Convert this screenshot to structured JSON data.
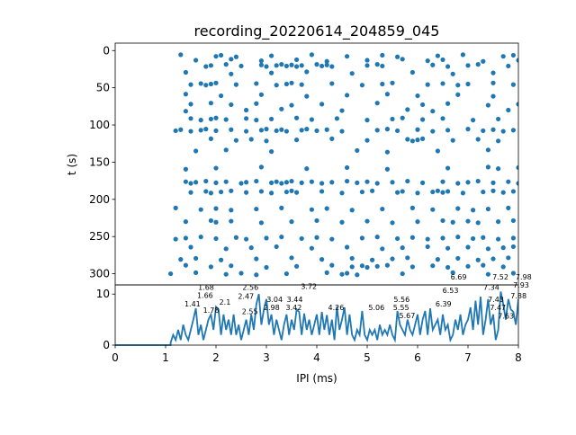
{
  "chart_data": [
    {
      "type": "scatter",
      "title": "recording_20220614_204859_045",
      "xlabel": "",
      "ylabel": "t (s)",
      "xlim": [
        0,
        8
      ],
      "ylim": [
        315,
        -10
      ],
      "yticks": [
        "0",
        "50",
        "100",
        "150",
        "200",
        "250",
        "300"
      ],
      "color": "#1f77b4",
      "rows": [
        {
          "t": 7,
          "x": [
            1.3,
            2.0,
            2.1,
            2.4,
            3.1,
            3.9,
            4.6,
            5.3,
            5.6,
            6.4,
            6.9,
            7.7,
            7.9
          ]
        },
        {
          "t": 13,
          "x": [
            1.6,
            2.3,
            2.9,
            3.6,
            4.2,
            5.0,
            5.7,
            6.2,
            6.5,
            7.3,
            8.0
          ]
        },
        {
          "t": 20,
          "x": [
            1.8,
            1.9,
            2.2,
            2.5,
            2.9,
            3.0,
            3.2,
            3.3,
            3.4,
            3.5,
            3.6,
            3.7,
            4.0,
            4.1,
            4.2,
            4.3,
            5.0,
            5.2,
            5.3,
            6.3,
            6.6,
            7.0,
            7.2,
            7.8
          ]
        },
        {
          "t": 30,
          "x": [
            1.4,
            2.3,
            3.1,
            3.8,
            4.7,
            5.9,
            6.7,
            7.5
          ]
        },
        {
          "t": 45,
          "x": [
            1.5,
            1.7,
            1.8,
            1.9,
            2.0,
            2.4,
            2.8,
            3.2,
            3.4,
            3.5,
            3.7,
            4.3,
            4.9,
            5.3,
            5.5,
            6.2,
            6.5,
            6.8,
            7.0,
            7.5,
            7.9
          ]
        },
        {
          "t": 60,
          "x": [
            1.4,
            2.1,
            2.9,
            3.8,
            4.6,
            5.4,
            6.0,
            6.8,
            7.5
          ]
        },
        {
          "t": 72,
          "x": [
            1.5,
            1.9,
            2.3,
            2.8,
            3.5,
            4.1,
            5.2,
            6.1,
            6.6,
            7.4,
            8.0
          ]
        },
        {
          "t": 80,
          "x": [
            1.4,
            2.6,
            3.3,
            4.5,
            5.8,
            6.3,
            7.8
          ]
        },
        {
          "t": 92,
          "x": [
            1.5,
            1.7,
            1.9,
            2.0,
            2.2,
            2.6,
            2.8,
            3.1,
            3.6,
            3.9,
            4.4,
            5.0,
            5.5,
            5.7,
            6.1,
            6.5,
            7.1,
            7.6
          ]
        },
        {
          "t": 107,
          "x": [
            1.2,
            1.3,
            1.5,
            1.7,
            1.8,
            2.0,
            2.3,
            2.6,
            2.9,
            3.0,
            3.2,
            3.3,
            3.4,
            3.7,
            3.8,
            4.0,
            4.2,
            4.5,
            5.2,
            5.4,
            5.6,
            6.0,
            6.3,
            6.6,
            7.0,
            7.3,
            7.5,
            7.7,
            7.9
          ]
        },
        {
          "t": 120,
          "x": [
            1.9,
            2.4,
            2.7,
            3.0,
            3.6,
            4.3,
            5.0,
            5.8,
            5.9,
            6.0,
            6.1,
            6.7,
            7.2,
            7.6
          ]
        },
        {
          "t": 135,
          "x": [
            1.6,
            2.2,
            3.1,
            4.8,
            5.4,
            6.4,
            7.4
          ]
        },
        {
          "t": 158,
          "x": [
            1.4,
            2.0,
            2.9,
            3.8,
            4.6,
            5.4,
            6.6,
            7.4,
            7.6,
            8.0
          ]
        },
        {
          "t": 177,
          "x": [
            1.4,
            1.5,
            1.6,
            1.8,
            2.0,
            2.2,
            2.5,
            2.6,
            2.8,
            3.1,
            3.2,
            3.3,
            3.4,
            3.5,
            3.7,
            3.9,
            4.1,
            4.3,
            4.6,
            4.8,
            5.0,
            5.2,
            5.5,
            5.8,
            6.1,
            6.5,
            6.8,
            7.0,
            7.2,
            7.5,
            7.8,
            8.0
          ]
        },
        {
          "t": 190,
          "x": [
            1.5,
            1.8,
            1.9,
            2.1,
            2.3,
            2.6,
            2.9,
            3.1,
            3.4,
            3.5,
            3.6,
            4.1,
            4.5,
            4.9,
            5.1,
            5.6,
            5.7,
            6.0,
            6.3,
            6.4,
            6.5,
            6.6,
            6.9,
            7.3,
            7.5,
            7.7,
            7.9
          ]
        },
        {
          "t": 213,
          "x": [
            1.2,
            1.7,
            2.0,
            2.3,
            2.8,
            3.3,
            3.9,
            4.2,
            4.7,
            5.3,
            5.9,
            6.3,
            6.8,
            7.1,
            7.4,
            7.8
          ]
        },
        {
          "t": 230,
          "x": [
            1.4,
            1.9,
            2.0,
            2.3,
            2.9,
            3.5,
            4.0,
            4.5,
            5.0,
            5.5,
            6.0,
            6.5,
            6.7,
            7.0,
            7.2,
            7.6,
            7.9
          ]
        },
        {
          "t": 252,
          "x": [
            1.2,
            1.4,
            1.7,
            2.0,
            2.4,
            2.6,
            3.0,
            3.3,
            3.7,
            4.0,
            4.3,
            4.9,
            5.2,
            5.6,
            5.9,
            6.2,
            6.5,
            6.8,
            7.1,
            7.3,
            7.6,
            7.9
          ]
        },
        {
          "t": 265,
          "x": [
            1.5,
            2.2,
            2.7,
            3.2,
            3.9,
            4.6,
            5.3,
            5.7,
            6.2,
            6.6,
            7.0,
            7.4,
            7.7,
            7.9
          ]
        },
        {
          "t": 280,
          "x": [
            1.3,
            1.6,
            2.1,
            2.8,
            3.5,
            4.1,
            4.7,
            5.1,
            5.5,
            5.8,
            6.4,
            6.8,
            7.2,
            7.5,
            7.8
          ]
        },
        {
          "t": 290,
          "x": [
            1.4,
            1.9,
            2.3,
            3.0,
            3.6,
            4.3,
            4.7,
            4.9,
            5.0,
            5.2,
            5.4,
            5.9,
            6.3,
            6.6,
            7.0,
            7.3,
            7.7
          ]
        },
        {
          "t": 300,
          "x": [
            1.1,
            1.6,
            2.2,
            2.5,
            2.8,
            3.4,
            4.2,
            4.5,
            4.6,
            4.8,
            5.7,
            6.7,
            7.4,
            7.9
          ]
        }
      ]
    },
    {
      "type": "line",
      "xlabel": "IPI (ms)",
      "ylabel": "",
      "xlim": [
        0,
        8
      ],
      "ylim": [
        0,
        11.8
      ],
      "xticks": [
        "0",
        "1",
        "2",
        "3",
        "4",
        "5",
        "6",
        "7",
        "8"
      ],
      "yticks": [
        "0",
        "10"
      ],
      "color": "#1f77b4",
      "x_start": 1.1,
      "x_step": 0.05,
      "values": [
        0.5,
        2,
        1,
        3,
        1,
        4,
        2,
        1,
        3,
        5,
        7.2,
        2,
        4,
        1,
        3,
        5,
        6,
        3,
        7.5,
        7,
        2,
        6,
        3,
        5,
        2,
        6,
        2,
        4,
        1,
        3,
        5,
        2,
        6,
        3,
        8,
        10,
        4,
        7,
        9,
        4,
        6,
        2,
        5,
        3,
        1,
        4,
        6,
        2,
        5,
        3,
        7,
        6.5,
        2,
        6.2,
        3,
        5,
        2,
        4,
        6,
        2,
        6.5,
        3,
        5.9,
        2,
        5,
        1,
        7.6,
        3,
        5,
        7.4,
        2,
        6,
        2,
        1,
        3,
        2,
        6.7,
        2,
        1,
        3,
        2,
        3,
        1,
        4,
        2,
        3,
        2,
        4,
        2,
        1,
        6.7,
        4,
        3,
        2,
        5,
        3,
        2,
        4,
        6,
        2,
        5,
        6.7,
        2,
        7.2,
        3,
        4,
        5,
        2,
        6,
        3,
        4,
        1,
        2,
        5,
        3,
        6,
        2,
        4,
        5,
        7.4,
        3,
        8.7,
        4,
        9.5,
        2,
        5,
        9,
        4,
        6,
        1,
        3,
        10.5,
        8,
        5,
        9,
        7,
        6.5,
        4,
        9,
        6.5,
        2,
        9.7,
        0,
        9.5,
        9.8
      ],
      "peak_labels": [
        {
          "label": "1.41",
          "x": 1.41,
          "y": 7.2
        },
        {
          "label": "1.66",
          "x": 1.66,
          "y": 7.3
        },
        {
          "label": "1.68",
          "x": 1.68,
          "y": 7.3
        },
        {
          "label": "1.78",
          "x": 1.78,
          "y": 6.0
        },
        {
          "label": "2.1",
          "x": 2.1,
          "y": 6.0
        },
        {
          "label": "2.47",
          "x": 2.47,
          "y": 8.7
        },
        {
          "label": "2.55",
          "x": 2.55,
          "y": 7.3
        },
        {
          "label": "2.56",
          "x": 2.56,
          "y": 7.3
        },
        {
          "label": "2.98",
          "x": 2.98,
          "y": 6.5
        },
        {
          "label": "3.04",
          "x": 3.04,
          "y": 6.5
        },
        {
          "label": "3.42",
          "x": 3.42,
          "y": 6.5
        },
        {
          "label": "3.44",
          "x": 3.44,
          "y": 6.5
        },
        {
          "label": "3.72",
          "x": 3.72,
          "y": 7.5
        },
        {
          "label": "4.26",
          "x": 4.26,
          "y": 6.5
        },
        {
          "label": "5.06",
          "x": 5.06,
          "y": 6.5
        },
        {
          "label": "5.55",
          "x": 5.55,
          "y": 6.5
        },
        {
          "label": "5.56",
          "x": 5.56,
          "y": 6.5
        },
        {
          "label": "5.67",
          "x": 5.67,
          "y": 6.5
        },
        {
          "label": "6.39",
          "x": 6.39,
          "y": 7.2
        },
        {
          "label": "6.53",
          "x": 6.53,
          "y": 8.3
        },
        {
          "label": "6.69",
          "x": 6.69,
          "y": 9.3
        },
        {
          "label": "7.34",
          "x": 7.34,
          "y": 10.5
        },
        {
          "label": "7.43",
          "x": 7.43,
          "y": 8.1
        },
        {
          "label": "7.47",
          "x": 7.47,
          "y": 8.1
        },
        {
          "label": "7.52",
          "x": 7.52,
          "y": 9.3
        },
        {
          "label": "7.63",
          "x": 7.63,
          "y": 6.4
        },
        {
          "label": "7.88",
          "x": 7.88,
          "y": 8.8
        },
        {
          "label": "7.93",
          "x": 7.93,
          "y": 9.3
        },
        {
          "label": "7.98",
          "x": 7.98,
          "y": 9.3
        }
      ]
    }
  ]
}
